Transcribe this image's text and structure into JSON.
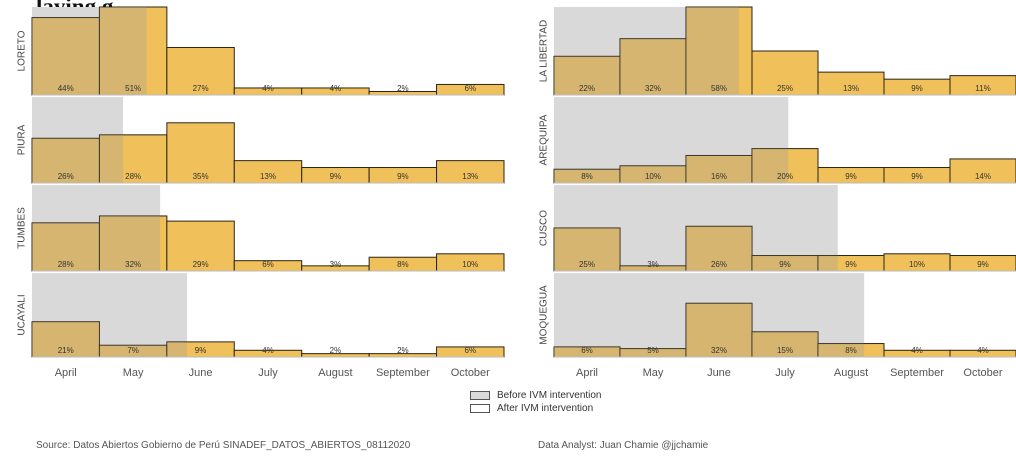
{
  "title_fragment": "laying g",
  "chart_data": [
    {
      "type": "bar",
      "panel": "LORETO",
      "categories": [
        "April",
        "May",
        "June",
        "July",
        "August",
        "September",
        "October"
      ],
      "values": [
        44,
        51,
        27,
        4,
        4,
        2,
        6
      ],
      "labels": [
        "44%",
        "51%",
        "27%",
        "4%",
        "4%",
        "2%",
        "6%"
      ],
      "before_ivm_months": 1.7
    },
    {
      "type": "bar",
      "panel": "PIURA",
      "categories": [
        "April",
        "May",
        "June",
        "July",
        "August",
        "September",
        "October"
      ],
      "values": [
        26,
        28,
        35,
        13,
        9,
        9,
        13
      ],
      "labels": [
        "26%",
        "28%",
        "35%",
        "13%",
        "9%",
        "9%",
        "13%"
      ],
      "before_ivm_months": 1.35
    },
    {
      "type": "bar",
      "panel": "TUMBES",
      "categories": [
        "April",
        "May",
        "June",
        "July",
        "August",
        "September",
        "October"
      ],
      "values": [
        28,
        32,
        29,
        6,
        3,
        8,
        10
      ],
      "labels": [
        "28%",
        "32%",
        "29%",
        "6%",
        "3%",
        "8%",
        "10%"
      ],
      "before_ivm_months": 1.9
    },
    {
      "type": "bar",
      "panel": "UCAYALI",
      "categories": [
        "April",
        "May",
        "June",
        "July",
        "August",
        "September",
        "October"
      ],
      "values": [
        21,
        7,
        9,
        4,
        2,
        2,
        6
      ],
      "labels": [
        "21%",
        "7%",
        "9%",
        "4%",
        "2%",
        "2%",
        "6%"
      ],
      "before_ivm_months": 2.3
    },
    {
      "type": "bar",
      "panel": "LA LIBERTAD",
      "categories": [
        "April",
        "May",
        "June",
        "July",
        "August",
        "September",
        "October"
      ],
      "values": [
        22,
        32,
        58,
        25,
        13,
        9,
        11
      ],
      "labels": [
        "22%",
        "32%",
        "58%",
        "25%",
        "13%",
        "9%",
        "11%"
      ],
      "before_ivm_months": 2.8
    },
    {
      "type": "bar",
      "panel": "AREQUIPA",
      "categories": [
        "April",
        "May",
        "June",
        "July",
        "August",
        "September",
        "October"
      ],
      "values": [
        8,
        10,
        16,
        20,
        9,
        9,
        14
      ],
      "labels": [
        "8%",
        "10%",
        "16%",
        "20%",
        "9%",
        "9%",
        "14%"
      ],
      "before_ivm_months": 3.55
    },
    {
      "type": "bar",
      "panel": "CUSCO",
      "categories": [
        "April",
        "May",
        "June",
        "July",
        "August",
        "September",
        "October"
      ],
      "values": [
        25,
        3,
        26,
        9,
        9,
        10,
        9
      ],
      "labels": [
        "25%",
        "3%",
        "26%",
        "9%",
        "9%",
        "10%",
        "9%"
      ],
      "before_ivm_months": 4.3
    },
    {
      "type": "bar",
      "panel": "MOQUEGUA",
      "categories": [
        "April",
        "May",
        "June",
        "July",
        "August",
        "September",
        "October"
      ],
      "values": [
        6,
        5,
        32,
        15,
        8,
        4,
        4
      ],
      "labels": [
        "6%",
        "5%",
        "32%",
        "15%",
        "8%",
        "4%",
        "4%"
      ],
      "before_ivm_months": 4.7
    }
  ],
  "x_labels": [
    "April",
    "May",
    "June",
    "July",
    "August",
    "September",
    "October"
  ],
  "legend": {
    "before": "Before IVM intervention",
    "after": "After IVM intervention"
  },
  "colors": {
    "bar": "#f0c15a",
    "bar_stroke": "#2b2415",
    "shade": "#9a9a9a",
    "before_bg": "#d9d9d9",
    "text": "#333333"
  },
  "footer": {
    "source": "Source: Datos Abiertos Gobierno de Perú   SINADEF_DATOS_ABIERTOS_08112020",
    "analyst": "Data Analyst: Juan Chamie  @jjchamie"
  }
}
